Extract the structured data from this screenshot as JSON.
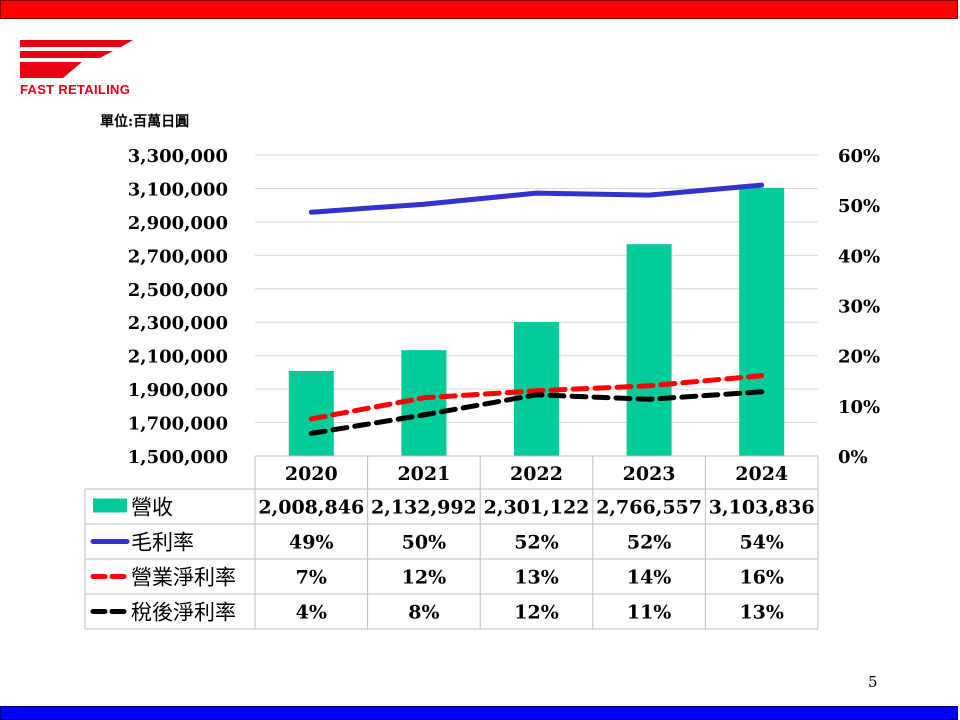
{
  "logo": {
    "text": "FAST RETAILING"
  },
  "unit_label": "單位:百萬日圓",
  "page_number": "5",
  "colors": {
    "top_bar": "#ff0000",
    "bottom_bar": "#0000ff",
    "revenue": "#00cc99",
    "gross_margin": "#3333cc",
    "operating_margin": "#ff0000",
    "net_margin": "#000000",
    "logo": "#e60012"
  },
  "chart_data": {
    "type": "bar",
    "categories": [
      "2020",
      "2021",
      "2022",
      "2023",
      "2024"
    ],
    "left_axis": {
      "ylim": [
        1500000,
        3300000
      ],
      "ticks": [
        "3,300,000",
        "3,100,000",
        "2,900,000",
        "2,700,000",
        "2,500,000",
        "2,300,000",
        "2,100,000",
        "1,900,000",
        "1,700,000",
        "1,500,000"
      ]
    },
    "right_axis": {
      "ylim": [
        0,
        60
      ],
      "ticks": [
        "60%",
        "50%",
        "40%",
        "30%",
        "20%",
        "10%",
        "0%"
      ]
    },
    "grid": true,
    "series": [
      {
        "name": "營收",
        "type": "bar",
        "axis": "left",
        "values": [
          2008846,
          2132992,
          2301122,
          2766557,
          3103836
        ],
        "labels": [
          "2,008,846",
          "2,132,992",
          "2,301,122",
          "2,766,557",
          "3,103,836"
        ]
      },
      {
        "name": "毛利率",
        "type": "line",
        "style": "solid",
        "axis": "right",
        "values": [
          48.6,
          50.2,
          52.4,
          52.0,
          54.0
        ],
        "labels": [
          "49%",
          "50%",
          "52%",
          "52%",
          "54%"
        ]
      },
      {
        "name": "營業淨利率",
        "type": "line",
        "style": "dashed",
        "axis": "right",
        "values": [
          7.4,
          11.6,
          13.0,
          14.0,
          16.0
        ],
        "labels": [
          "7%",
          "12%",
          "13%",
          "14%",
          "16%"
        ]
      },
      {
        "name": "稅後淨利率",
        "type": "line",
        "style": "dashed",
        "axis": "right",
        "values": [
          4.5,
          8.2,
          12.2,
          11.3,
          12.8
        ],
        "labels": [
          "4%",
          "8%",
          "12%",
          "11%",
          "13%"
        ]
      }
    ]
  }
}
